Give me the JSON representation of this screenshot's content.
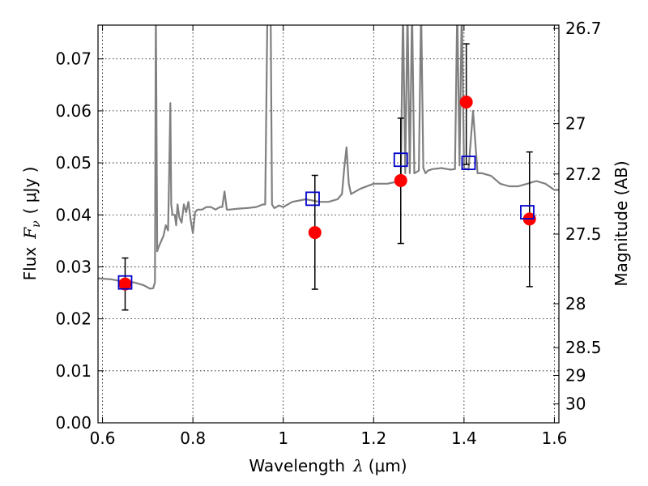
{
  "chart_data": {
    "type": "scatter",
    "xlabel": "Wavelength",
    "xlabel_symbol": "λ",
    "xlabel_unit": "(μm)",
    "ylabel": "Flux",
    "ylabel_symbol": "F",
    "ylabel_subscript": "ν",
    "ylabel_unit": "( μJy )",
    "ylabel_right": "Magnitude (AB)",
    "xlim": [
      0.59,
      1.61
    ],
    "ylim": [
      0.0,
      0.0765
    ],
    "grid": true,
    "x_ticks": [
      {
        "value": 0.6,
        "label": "0.6"
      },
      {
        "value": 0.8,
        "label": "0.8"
      },
      {
        "value": 1.0,
        "label": "1"
      },
      {
        "value": 1.2,
        "label": "1.2"
      },
      {
        "value": 1.4,
        "label": "1.4"
      },
      {
        "value": 1.6,
        "label": "1.6"
      }
    ],
    "y_ticks": [
      {
        "value": 0.0,
        "label": "0.00"
      },
      {
        "value": 0.01,
        "label": "0.01"
      },
      {
        "value": 0.02,
        "label": "0.02"
      },
      {
        "value": 0.03,
        "label": "0.03"
      },
      {
        "value": 0.04,
        "label": "0.04"
      },
      {
        "value": 0.05,
        "label": "0.05"
      },
      {
        "value": 0.06,
        "label": "0.06"
      },
      {
        "value": 0.07,
        "label": "0.07"
      }
    ],
    "y2_ticks": [
      {
        "value": 26.7,
        "label": "26.7"
      },
      {
        "value": 27.0,
        "label": "27"
      },
      {
        "value": 27.2,
        "label": "27.2"
      },
      {
        "value": 27.5,
        "label": "27.5"
      },
      {
        "value": 28.0,
        "label": "28"
      },
      {
        "value": 28.5,
        "label": "28.5"
      },
      {
        "value": 29.0,
        "label": "29"
      },
      {
        "value": 30.0,
        "label": "30"
      }
    ],
    "series": [
      {
        "kind": "observed",
        "marker": "circle",
        "color": "#ff0000",
        "points": [
          {
            "x": 0.65,
            "y": 0.0267,
            "ylow": 0.0217,
            "yhigh": 0.0317
          },
          {
            "x": 1.07,
            "y": 0.0366,
            "ylow": 0.0257,
            "yhigh": 0.0476
          },
          {
            "x": 1.26,
            "y": 0.0466,
            "ylow": 0.0345,
            "yhigh": 0.0586
          },
          {
            "x": 1.405,
            "y": 0.0617,
            "ylow": 0.0497,
            "yhigh": 0.0729
          },
          {
            "x": 1.545,
            "y": 0.0392,
            "ylow": 0.0262,
            "yhigh": 0.0521
          }
        ]
      },
      {
        "kind": "model",
        "marker": "square",
        "color": "#0000cc",
        "points": [
          {
            "x": 0.65,
            "y": 0.027
          },
          {
            "x": 1.065,
            "y": 0.0431
          },
          {
            "x": 1.26,
            "y": 0.0506
          },
          {
            "x": 1.41,
            "y": 0.05
          },
          {
            "x": 1.54,
            "y": 0.0405
          }
        ]
      },
      {
        "kind": "spectrum",
        "color": "#808080",
        "x": [
          0.59,
          0.62,
          0.65,
          0.67,
          0.69,
          0.705,
          0.712,
          0.716,
          0.718,
          0.721,
          0.725,
          0.73,
          0.735,
          0.74,
          0.745,
          0.748,
          0.75,
          0.752,
          0.755,
          0.76,
          0.763,
          0.766,
          0.77,
          0.775,
          0.78,
          0.785,
          0.79,
          0.795,
          0.8,
          0.805,
          0.81,
          0.82,
          0.83,
          0.84,
          0.85,
          0.86,
          0.865,
          0.87,
          0.875,
          0.88,
          0.9,
          0.92,
          0.94,
          0.955,
          0.96,
          0.965,
          0.972,
          0.975,
          0.98,
          0.985,
          0.99,
          1.0,
          1.02,
          1.05,
          1.08,
          1.1,
          1.12,
          1.13,
          1.135,
          1.14,
          1.145,
          1.15,
          1.17,
          1.2,
          1.23,
          1.26,
          1.265,
          1.27,
          1.275,
          1.28,
          1.285,
          1.29,
          1.3,
          1.305,
          1.31,
          1.315,
          1.32,
          1.33,
          1.35,
          1.37,
          1.38,
          1.385,
          1.39,
          1.395,
          1.4,
          1.41,
          1.42,
          1.43,
          1.44,
          1.46,
          1.48,
          1.5,
          1.52,
          1.54,
          1.56,
          1.58,
          1.6,
          1.61
        ],
        "y": [
          0.0278,
          0.0276,
          0.0271,
          0.027,
          0.0265,
          0.0258,
          0.0259,
          0.027,
          0.08,
          0.033,
          0.034,
          0.035,
          0.036,
          0.038,
          0.037,
          0.05,
          0.0615,
          0.042,
          0.04,
          0.04,
          0.038,
          0.042,
          0.0395,
          0.0385,
          0.042,
          0.0405,
          0.0425,
          0.039,
          0.0365,
          0.0405,
          0.041,
          0.041,
          0.0415,
          0.0415,
          0.041,
          0.0415,
          0.0415,
          0.0445,
          0.041,
          0.041,
          0.0412,
          0.0413,
          0.0415,
          0.042,
          0.042,
          0.08,
          0.08,
          0.042,
          0.0413,
          0.0415,
          0.0418,
          0.0415,
          0.0425,
          0.043,
          0.0425,
          0.0425,
          0.043,
          0.044,
          0.049,
          0.053,
          0.046,
          0.044,
          0.045,
          0.046,
          0.046,
          0.0465,
          0.08,
          0.048,
          0.08,
          0.048,
          0.08,
          0.048,
          0.0485,
          0.08,
          0.049,
          0.048,
          0.0485,
          0.0488,
          0.049,
          0.0487,
          0.0488,
          0.08,
          0.0495,
          0.08,
          0.049,
          0.0487,
          0.06,
          0.048,
          0.048,
          0.0475,
          0.046,
          0.0455,
          0.0455,
          0.046,
          0.0465,
          0.046,
          0.0448,
          0.0448
        ]
      }
    ]
  }
}
